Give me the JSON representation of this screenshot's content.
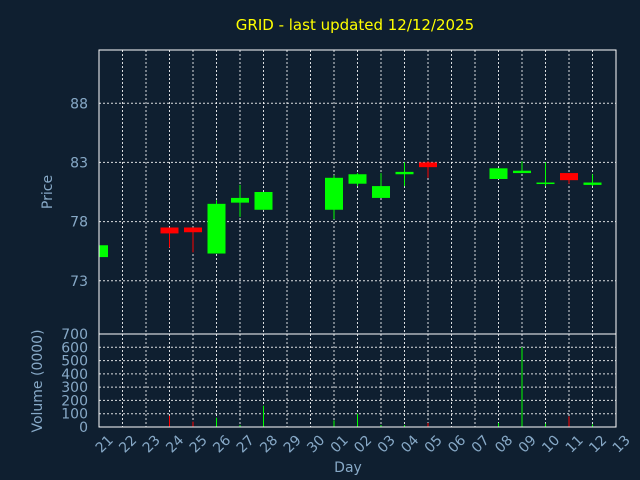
{
  "chart_data": [
    {
      "type": "candlestick",
      "title": "GRID - last updated 12/12/2025",
      "ylabel": "Price",
      "xlabel": "",
      "ylim": [
        68.5,
        92.5
      ],
      "yticks": [
        "73",
        "78",
        "83",
        "88"
      ],
      "ytick_values": [
        73,
        78,
        83,
        88
      ],
      "grid": true,
      "x": [
        "21",
        "22",
        "23",
        "24",
        "25",
        "26",
        "27",
        "28",
        "29",
        "30",
        "01",
        "02",
        "03",
        "04",
        "05",
        "06",
        "07",
        "08",
        "09",
        "10",
        "11",
        "12",
        "13"
      ],
      "candles": [
        {
          "day": "21",
          "open": 75.0,
          "close": 76.0,
          "high": 76.0,
          "low": 75.0
        },
        {
          "day": "24",
          "open": 77.5,
          "close": 77.0,
          "high": 77.5,
          "low": 75.8
        },
        {
          "day": "25",
          "open": 77.5,
          "close": 77.1,
          "high": 77.5,
          "low": 75.4
        },
        {
          "day": "26",
          "open": 75.3,
          "close": 79.5,
          "high": 79.8,
          "low": 75.3
        },
        {
          "day": "27",
          "open": 79.6,
          "close": 80.0,
          "high": 81.1,
          "low": 78.4
        },
        {
          "day": "28",
          "open": 79.0,
          "close": 80.5,
          "high": 80.5,
          "low": 79.0
        },
        {
          "day": "01",
          "open": 79.0,
          "close": 81.7,
          "high": 81.9,
          "low": 78.2
        },
        {
          "day": "02",
          "open": 81.2,
          "close": 82.0,
          "high": 82.1,
          "low": 81.0
        },
        {
          "day": "03",
          "open": 80.0,
          "close": 81.0,
          "high": 82.1,
          "low": 80.0
        },
        {
          "day": "04",
          "open": 82.0,
          "close": 82.2,
          "high": 83.0,
          "low": 81.0
        },
        {
          "day": "05",
          "open": 83.0,
          "close": 82.6,
          "high": 83.1,
          "low": 81.7
        },
        {
          "day": "08",
          "open": 81.6,
          "close": 82.5,
          "high": 82.5,
          "low": 81.6
        },
        {
          "day": "09",
          "open": 82.1,
          "close": 82.3,
          "high": 83.1,
          "low": 82.1
        },
        {
          "day": "10",
          "open": 81.2,
          "close": 81.3,
          "high": 83.0,
          "low": 81.0
        },
        {
          "day": "11",
          "open": 82.1,
          "close": 81.5,
          "high": 82.1,
          "low": 81.2
        },
        {
          "day": "12",
          "open": 81.1,
          "close": 81.3,
          "high": 82.0,
          "low": 81.0
        }
      ],
      "up_color": "#00ff00",
      "down_color": "#ff0000"
    },
    {
      "type": "bar",
      "ylabel": "Volume (0000)",
      "xlabel": "Day",
      "ylim": [
        0,
        700
      ],
      "yticks": [
        "0",
        "100",
        "200",
        "300",
        "400",
        "500",
        "600",
        "700"
      ],
      "ytick_values": [
        0,
        100,
        200,
        300,
        400,
        500,
        600,
        700
      ],
      "grid": true,
      "categories": [
        "21",
        "22",
        "23",
        "24",
        "25",
        "26",
        "27",
        "28",
        "29",
        "30",
        "01",
        "02",
        "03",
        "04",
        "05",
        "06",
        "07",
        "08",
        "09",
        "10",
        "11",
        "12",
        "13"
      ],
      "bars": [
        {
          "day": "21",
          "value": 5,
          "color": "#00ff00"
        },
        {
          "day": "24",
          "value": 85,
          "color": "#ff0000"
        },
        {
          "day": "25",
          "value": 40,
          "color": "#ff0000"
        },
        {
          "day": "26",
          "value": 70,
          "color": "#00ff00"
        },
        {
          "day": "27",
          "value": 15,
          "color": "#00ff00"
        },
        {
          "day": "28",
          "value": 160,
          "color": "#00ff00"
        },
        {
          "day": "01",
          "value": 50,
          "color": "#00ff00"
        },
        {
          "day": "02",
          "value": 100,
          "color": "#00ff00"
        },
        {
          "day": "03",
          "value": 15,
          "color": "#00ff00"
        },
        {
          "day": "04",
          "value": 15,
          "color": "#00ff00"
        },
        {
          "day": "05",
          "value": 30,
          "color": "#ff0000"
        },
        {
          "day": "08",
          "value": 30,
          "color": "#00ff00"
        },
        {
          "day": "09",
          "value": 600,
          "color": "#00ff00"
        },
        {
          "day": "10",
          "value": 25,
          "color": "#00ff00"
        },
        {
          "day": "11",
          "value": 80,
          "color": "#ff0000"
        },
        {
          "day": "12",
          "value": 20,
          "color": "#00ff00"
        }
      ]
    }
  ],
  "colors": {
    "background": "#0f1f30",
    "title": "#ffff00",
    "labels": "#87a9c7",
    "grid": "#ffffff"
  }
}
